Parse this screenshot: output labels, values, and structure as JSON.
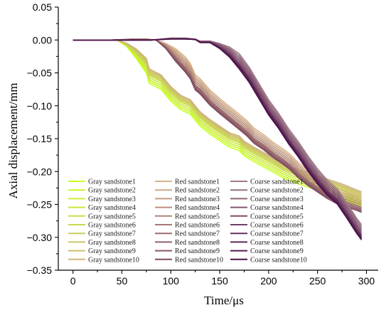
{
  "chart_data": {
    "type": "line",
    "xlabel": "Time/μs",
    "ylabel": "Axial displacement/mm",
    "xlim": [
      -15,
      312
    ],
    "ylim": [
      -0.35,
      0.05
    ],
    "xticks": [
      0,
      50,
      100,
      150,
      200,
      250,
      300
    ],
    "yticks": [
      0.05,
      0.0,
      -0.05,
      -0.1,
      -0.15,
      -0.2,
      -0.25,
      -0.3,
      -0.35
    ],
    "ytick_labels": [
      "0.05",
      "0.00",
      "−0.05",
      "−0.10",
      "−0.15",
      "−0.20",
      "−0.25",
      "−0.30",
      "−0.35"
    ],
    "grid": false,
    "legend": "bottom-left, three columns",
    "groups": [
      {
        "name": "Gray",
        "color_start": "#c8ff20",
        "color_end": "#cdb57a",
        "x": [
          0,
          20,
          38,
          45,
          55,
          65,
          75,
          78,
          90,
          100,
          110,
          120,
          130,
          140,
          150,
          160,
          170,
          175,
          185,
          195,
          205,
          215,
          225,
          235,
          245,
          255,
          265,
          275,
          285,
          295
        ],
        "values": [
          0.0,
          0.0,
          0.0,
          0.0,
          -0.007,
          -0.02,
          -0.037,
          -0.053,
          -0.062,
          -0.08,
          -0.093,
          -0.1,
          -0.118,
          -0.13,
          -0.14,
          -0.15,
          -0.155,
          -0.163,
          -0.172,
          -0.18,
          -0.188,
          -0.197,
          -0.203,
          -0.208,
          -0.213,
          -0.218,
          -0.223,
          -0.228,
          -0.234,
          -0.24
        ],
        "series": [
          {
            "name": "Gray sandstone1",
            "offset": -0.013
          },
          {
            "name": "Gray sandstone2",
            "offset": -0.01
          },
          {
            "name": "Gray sandstone3",
            "offset": -0.007
          },
          {
            "name": "Gray sandstone4",
            "offset": -0.004
          },
          {
            "name": "Gray sandstone5",
            "offset": -0.001
          },
          {
            "name": "Gray sandstone6",
            "offset": 0.001
          },
          {
            "name": "Gray sandstone7",
            "offset": 0.003
          },
          {
            "name": "Gray sandstone8",
            "offset": 0.005
          },
          {
            "name": "Gray sandstone9",
            "offset": 0.007
          },
          {
            "name": "Gray sandstone10",
            "offset": 0.009
          }
        ]
      },
      {
        "name": "Red",
        "color_start": "#d7b38a",
        "color_end": "#7d4a60",
        "x": [
          0,
          40,
          60,
          75,
          85,
          95,
          105,
          115,
          120,
          125,
          130,
          140,
          150,
          160,
          170,
          178,
          185,
          195,
          205,
          215,
          222,
          230,
          240,
          250,
          260,
          270,
          280,
          290,
          295
        ],
        "values": [
          0.0,
          0.0,
          0.001,
          0.001,
          0.0,
          -0.01,
          -0.025,
          -0.04,
          -0.05,
          -0.067,
          -0.073,
          -0.09,
          -0.103,
          -0.115,
          -0.127,
          -0.137,
          -0.148,
          -0.158,
          -0.17,
          -0.18,
          -0.188,
          -0.2,
          -0.212,
          -0.222,
          -0.232,
          -0.24,
          -0.245,
          -0.25,
          -0.253
        ],
        "series": [
          {
            "name": "Red sandstone1",
            "offset": 0.014
          },
          {
            "name": "Red sandstone2",
            "offset": 0.011
          },
          {
            "name": "Red sandstone3",
            "offset": 0.008
          },
          {
            "name": "Red sandstone4",
            "offset": 0.005
          },
          {
            "name": "Red sandstone5",
            "offset": 0.002
          },
          {
            "name": "Red sandstone6",
            "offset": -0.001
          },
          {
            "name": "Red sandstone7",
            "offset": -0.003
          },
          {
            "name": "Red sandstone8",
            "offset": -0.005
          },
          {
            "name": "Red sandstone9",
            "offset": -0.007
          },
          {
            "name": "Red sandstone10",
            "offset": -0.009
          }
        ]
      },
      {
        "name": "Coarse",
        "color_start": "#a27b8a",
        "color_end": "#4a1048",
        "x": [
          0,
          80,
          100,
          115,
          125,
          130,
          140,
          150,
          160,
          170,
          180,
          190,
          200,
          210,
          220,
          230,
          240,
          250,
          260,
          270,
          280,
          290,
          295
        ],
        "values": [
          0.0,
          0.0,
          0.002,
          0.002,
          0.001,
          -0.003,
          -0.003,
          -0.01,
          -0.02,
          -0.035,
          -0.055,
          -0.08,
          -0.105,
          -0.125,
          -0.148,
          -0.168,
          -0.19,
          -0.21,
          -0.227,
          -0.24,
          -0.262,
          -0.285,
          -0.295
        ],
        "series": [
          {
            "name": "Coarse sandstone1",
            "offset": 0.014
          },
          {
            "name": "Coarse sandstone2",
            "offset": 0.011
          },
          {
            "name": "Coarse sandstone3",
            "offset": 0.008
          },
          {
            "name": "Coarse sandstone4",
            "offset": 0.005
          },
          {
            "name": "Coarse sandstone5",
            "offset": 0.002
          },
          {
            "name": "Coarse sandstone6",
            "offset": -0.001
          },
          {
            "name": "Coarse sandstone7",
            "offset": -0.003
          },
          {
            "name": "Coarse sandstone8",
            "offset": -0.005
          },
          {
            "name": "Coarse sandstone9",
            "offset": -0.007
          },
          {
            "name": "Coarse sandstone10",
            "offset": -0.009
          }
        ]
      }
    ]
  }
}
